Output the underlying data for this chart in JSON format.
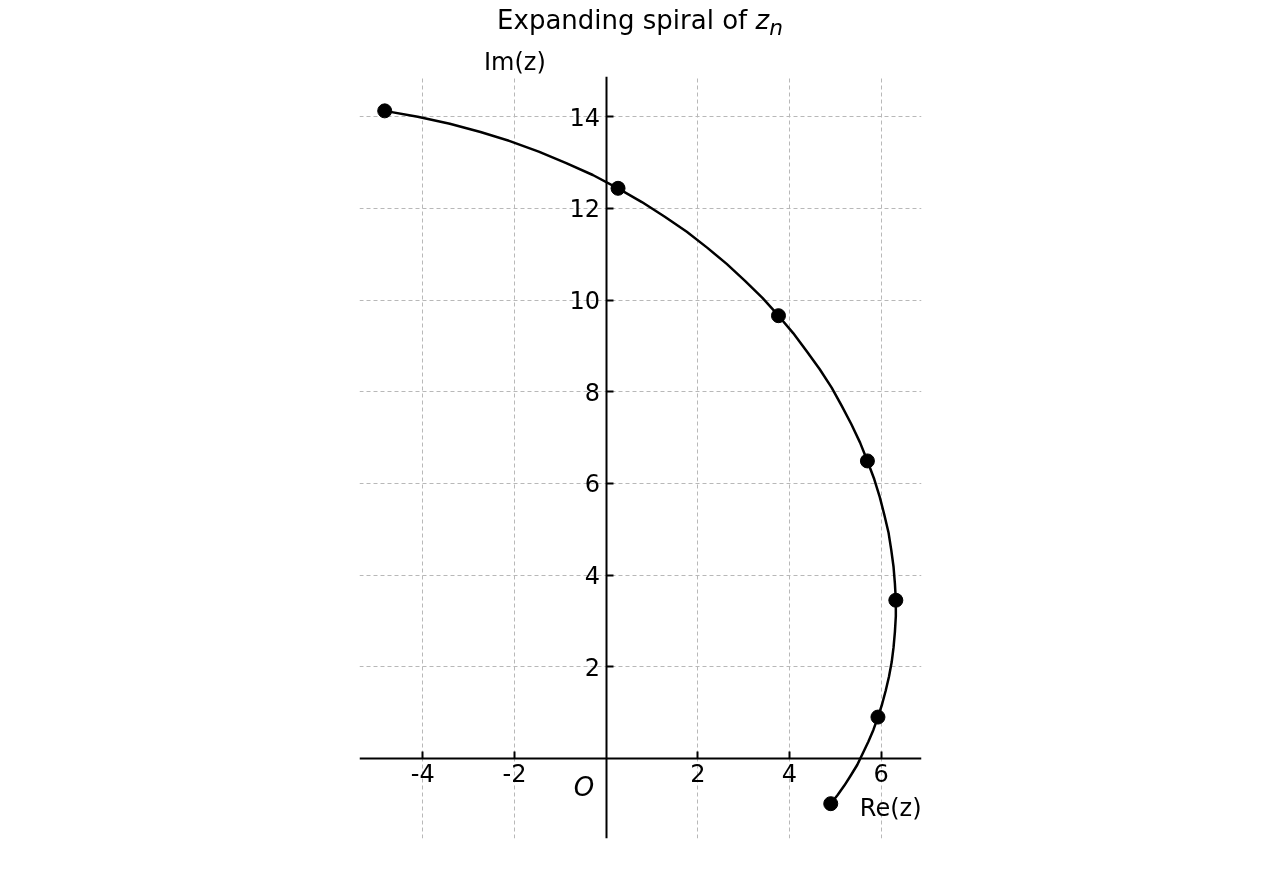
{
  "chart_data": {
    "type": "scatter",
    "title": "Expanding spiral of z$_{n}$",
    "xlabel": "Re(z)",
    "ylabel": "Im(z)",
    "annotations": [
      "O"
    ],
    "xlim": [
      -5.38,
      6.88
    ],
    "ylim": [
      -1.75,
      14.88
    ],
    "xticks": [
      -4,
      -2,
      2,
      4,
      6
    ],
    "yticks": [
      2,
      4,
      6,
      8,
      10,
      12,
      14
    ],
    "grid": true,
    "series": [
      {
        "type": "line",
        "color": "#000000",
        "line_style": "solid",
        "x": [
          4.9,
          5.05,
          5.2,
          5.34,
          5.48,
          5.6,
          5.72,
          5.83,
          5.93,
          6.02,
          6.1,
          6.17,
          6.23,
          6.27,
          6.3,
          6.32,
          6.32,
          6.3,
          6.27,
          6.22,
          6.16,
          6.07,
          5.97,
          5.85,
          5.7,
          5.54,
          5.35,
          5.14,
          4.92,
          4.66,
          4.38,
          4.08,
          3.76,
          3.41,
          3.03,
          2.63,
          2.21,
          1.76,
          1.28,
          0.78,
          0.26,
          -0.29,
          -0.87,
          -1.47,
          -2.1,
          -2.74,
          -3.41,
          -4.11,
          -4.83
        ],
        "values": [
          -0.99,
          -0.8,
          -0.59,
          -0.37,
          -0.14,
          0.11,
          0.36,
          0.62,
          0.9,
          1.18,
          1.48,
          1.78,
          2.1,
          2.42,
          2.76,
          3.1,
          3.45,
          3.81,
          4.18,
          4.55,
          4.93,
          5.31,
          5.7,
          6.09,
          6.49,
          6.89,
          7.29,
          7.69,
          8.09,
          8.49,
          8.88,
          9.28,
          9.66,
          10.05,
          10.42,
          10.79,
          11.14,
          11.49,
          11.82,
          12.14,
          12.44,
          12.73,
          12.99,
          13.24,
          13.47,
          13.67,
          13.85,
          14.0,
          14.13
        ]
      },
      {
        "color": "#000000",
        "marker": "circle",
        "x": [
          4.9,
          5.93,
          6.32,
          5.7,
          3.76,
          0.26,
          -4.83
        ],
        "values": [
          -0.99,
          0.9,
          3.45,
          6.49,
          9.66,
          12.44,
          14.13
        ]
      }
    ]
  }
}
